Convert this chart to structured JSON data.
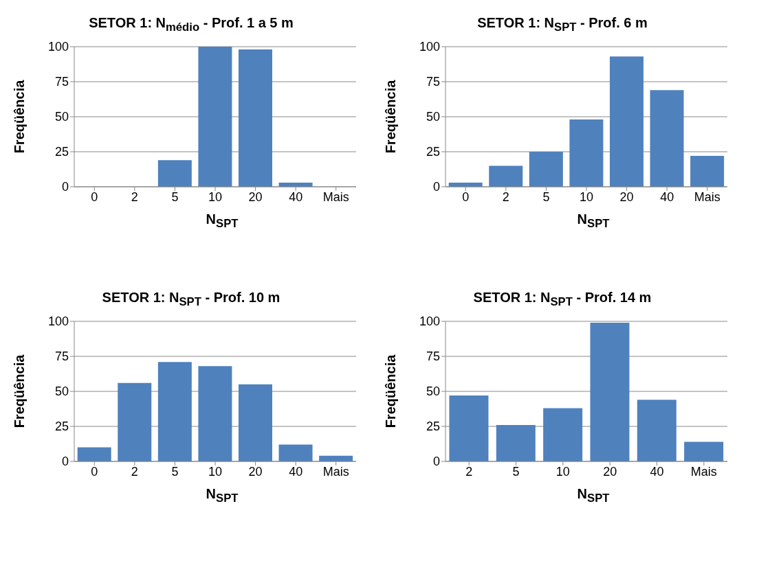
{
  "chart_data": [
    {
      "type": "bar",
      "title": "SETOR 1:  N$_{médio}$ - Prof.  1 a 5 m",
      "xlabel": "N$_{SPT}$",
      "ylabel": "Freqüência",
      "categories": [
        "0",
        "2",
        "5",
        "10",
        "20",
        "40",
        "Mais"
      ],
      "values": [
        0,
        0,
        19,
        100,
        98,
        3,
        0
      ],
      "color": "#4f81bd",
      "ylim": [
        0,
        100
      ],
      "yticks": [
        0,
        25,
        50,
        75,
        100
      ],
      "grid": "y",
      "legend": false
    },
    {
      "type": "bar",
      "title": "SETOR 1:  N$_{SPT}$ - Prof.  6 m",
      "xlabel": "N$_{SPT}$",
      "ylabel": "Freqüência",
      "categories": [
        "0",
        "2",
        "5",
        "10",
        "20",
        "40",
        "Mais"
      ],
      "values": [
        3,
        15,
        25,
        48,
        93,
        69,
        22
      ],
      "color": "#4f81bd",
      "ylim": [
        0,
        100
      ],
      "yticks": [
        0,
        25,
        50,
        75,
        100
      ],
      "grid": "y",
      "legend": false
    },
    {
      "type": "bar",
      "title": "SETOR 1:  N$_{SPT}$ - Prof.  10 m",
      "xlabel": "N$_{SPT}$",
      "ylabel": "Freqüência",
      "categories": [
        "0",
        "2",
        "5",
        "10",
        "20",
        "40",
        "Mais"
      ],
      "values": [
        10,
        56,
        71,
        68,
        55,
        12,
        4
      ],
      "color": "#4f81bd",
      "ylim": [
        0,
        100
      ],
      "yticks": [
        0,
        25,
        50,
        75,
        100
      ],
      "grid": "y",
      "legend": false
    },
    {
      "type": "bar",
      "title": "SETOR 1:  N$_{SPT}$ - Prof.  14 m",
      "xlabel": "N$_{SPT}$",
      "ylabel": "Freqüência",
      "categories": [
        "2",
        "5",
        "10",
        "20",
        "40",
        "Mais"
      ],
      "values": [
        47,
        26,
        38,
        99,
        44,
        14
      ],
      "color": "#4f81bd",
      "ylim": [
        0,
        100
      ],
      "yticks": [
        0,
        25,
        50,
        75,
        100
      ],
      "grid": "y",
      "legend": false
    }
  ]
}
